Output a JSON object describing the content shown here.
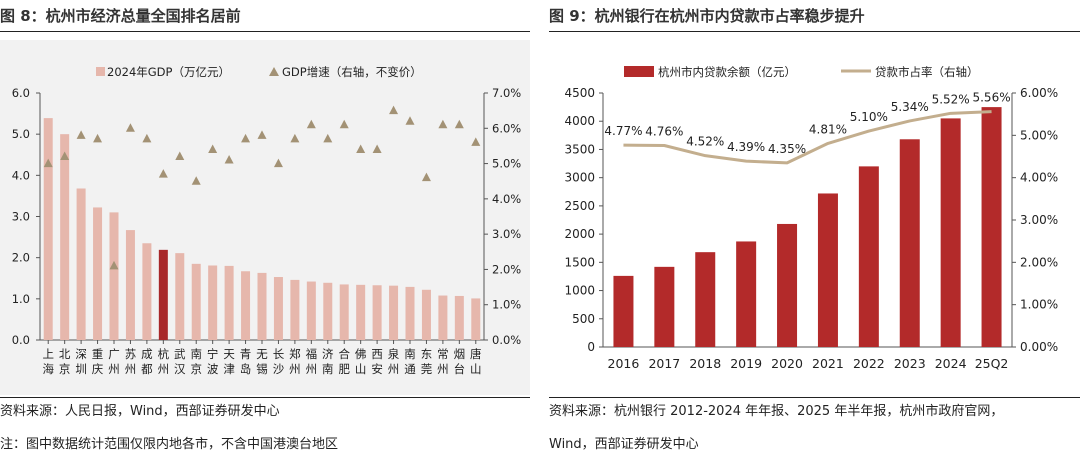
{
  "left": {
    "title": "图 8：杭州市经济总量全国排名居前",
    "source": "资料来源：人民日报，Wind，西部证券研发中心",
    "note": "注：图中数据统计范围仅限内地各市，不含中国港澳台地区"
  },
  "right": {
    "title": "图 9：杭州银行在杭州市内贷款市占率稳步提升",
    "source": "资料来源：杭州银行 2012-2024 年年报、2025 年半年报，杭州市政府官网，",
    "source2": "Wind，西部证券研发中心"
  },
  "chart_data": [
    {
      "type": "bar",
      "categories": [
        "上海",
        "北京",
        "深圳",
        "重庆",
        "广州",
        "苏州",
        "成都",
        "杭州",
        "武汉",
        "南京",
        "宁波",
        "天津",
        "青岛",
        "无锡",
        "长沙",
        "郑州",
        "福州",
        "济南",
        "合肥",
        "佛山",
        "西安",
        "泉州",
        "南通",
        "东莞",
        "常州",
        "烟台",
        "唐山"
      ],
      "category_labels": [
        [
          "上",
          "海"
        ],
        [
          "北",
          "京"
        ],
        [
          "深",
          "圳"
        ],
        [
          "重",
          "庆"
        ],
        [
          "广",
          "州"
        ],
        [
          "苏",
          "州"
        ],
        [
          "成",
          "都"
        ],
        [
          "杭",
          "州"
        ],
        [
          "武",
          "汉"
        ],
        [
          "南",
          "京"
        ],
        [
          "宁",
          "波"
        ],
        [
          "天",
          "津"
        ],
        [
          "青",
          "岛"
        ],
        [
          "无",
          "锡"
        ],
        [
          "长",
          "沙"
        ],
        [
          "郑",
          "州"
        ],
        [
          "福",
          "州"
        ],
        [
          "济",
          "南"
        ],
        [
          "合",
          "肥"
        ],
        [
          "佛",
          "山"
        ],
        [
          "西",
          "安"
        ],
        [
          "泉",
          "州"
        ],
        [
          "南",
          "通"
        ],
        [
          "东",
          "莞"
        ],
        [
          "常",
          "州"
        ],
        [
          "烟",
          "台"
        ],
        [
          "唐",
          "山"
        ]
      ],
      "series": [
        {
          "name": "2024年GDP（万亿元）",
          "kind": "bar",
          "axis": "left",
          "values": [
            5.39,
            5.0,
            3.68,
            3.22,
            3.1,
            2.67,
            2.35,
            2.19,
            2.11,
            1.85,
            1.81,
            1.8,
            1.67,
            1.63,
            1.53,
            1.46,
            1.42,
            1.39,
            1.35,
            1.34,
            1.33,
            1.32,
            1.29,
            1.22,
            1.08,
            1.07,
            1.01
          ]
        },
        {
          "name": "GDP增速（右轴，不变价）",
          "kind": "marker",
          "axis": "right",
          "values": [
            5.0,
            5.2,
            5.8,
            5.7,
            2.1,
            6.0,
            5.7,
            4.7,
            5.2,
            4.5,
            5.4,
            5.1,
            5.7,
            5.8,
            5.0,
            5.7,
            6.1,
            5.7,
            6.1,
            5.4,
            5.4,
            6.5,
            6.2,
            4.6,
            6.1,
            6.1,
            5.6
          ]
        }
      ],
      "highlight_bar": "杭州",
      "y_left": {
        "min": 0,
        "max": 6,
        "ticks": [
          "0.0",
          "1.0",
          "2.0",
          "3.0",
          "4.0",
          "5.0",
          "6.0"
        ]
      },
      "y_right": {
        "min": 0,
        "max": 7,
        "ticks": [
          "0.0%",
          "1.0%",
          "2.0%",
          "3.0%",
          "4.0%",
          "5.0%",
          "6.0%",
          "7.0%"
        ]
      },
      "colors": {
        "bar": "#e6b7ac",
        "highlight": "#a8282a",
        "marker": "#a39275"
      },
      "grid": false,
      "legend": "top"
    },
    {
      "type": "bar",
      "categories": [
        "2016",
        "2017",
        "2018",
        "2019",
        "2020",
        "2021",
        "2022",
        "2023",
        "2024",
        "25Q2"
      ],
      "series": [
        {
          "name": "杭州市内贷款余额（亿元）",
          "kind": "bar",
          "axis": "left",
          "values": [
            1260,
            1420,
            1680,
            1870,
            2180,
            2720,
            3200,
            3680,
            4050,
            4250
          ]
        },
        {
          "name": "贷款市占率（右轴）",
          "kind": "line",
          "axis": "right",
          "values": [
            4.77,
            4.76,
            4.52,
            4.39,
            4.35,
            4.81,
            5.1,
            5.34,
            5.52,
            5.56
          ],
          "labels": [
            "4.77%",
            "4.76%",
            "4.52%",
            "4.39%",
            "4.35%",
            "4.81%",
            "5.10%",
            "5.34%",
            "5.52%",
            "5.56%"
          ]
        }
      ],
      "y_left": {
        "min": 0,
        "max": 4500,
        "ticks": [
          "0",
          "500",
          "1000",
          "1500",
          "2000",
          "2500",
          "3000",
          "3500",
          "4000",
          "4500"
        ]
      },
      "y_right": {
        "min": 0,
        "max": 6,
        "ticks": [
          "0.00%",
          "1.00%",
          "2.00%",
          "3.00%",
          "4.00%",
          "5.00%",
          "6.00%"
        ]
      },
      "colors": {
        "bar": "#b32a2a",
        "line": "#c3ae8e"
      },
      "grid": false,
      "legend": "top"
    }
  ]
}
